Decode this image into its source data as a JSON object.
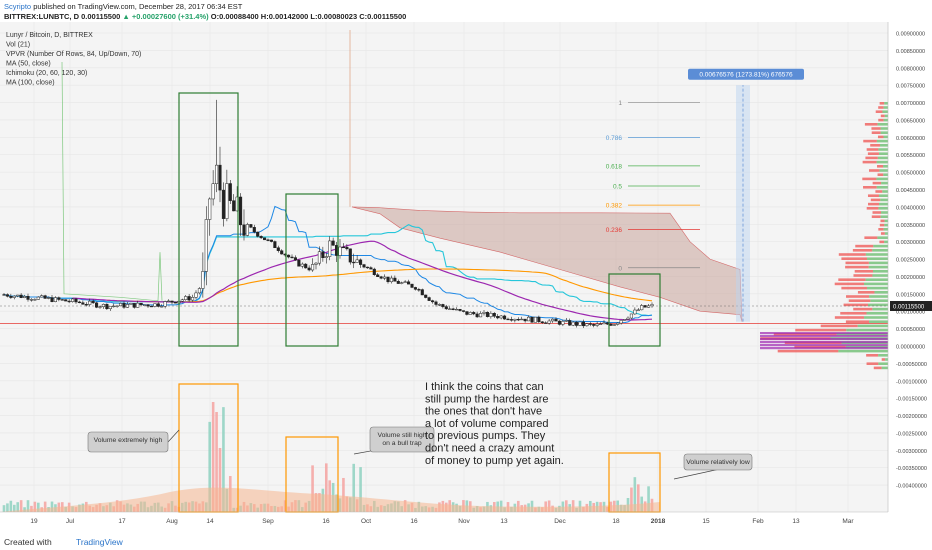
{
  "header": {
    "author": "Scyripto",
    "published": "published on TradingView.com, December 28, 2017 06:34 EST",
    "symbol": "BITTREX:LUNBTC, D",
    "last": "0.00115500",
    "change": "▲ +0.00027600 (+31.4%)",
    "ohlc": "O:0.00088400 H:0.00142000 L:0.00080023 C:0.00115500"
  },
  "legend": [
    "Lunyr / Bitcoin, D, BITTREX",
    "Vol (21)",
    "VPVR (Number Of Rows, 84, Up/Down, 70)",
    "MA (50, close)",
    "Ichimoku (20, 60, 120, 30)",
    "MA (100, close)"
  ],
  "footer": {
    "created": "Created with",
    "brand": "TradingView"
  },
  "annotations": {
    "main_text": [
      "I think the coins that can",
      "still pump the hardest are",
      "the ones that don't have",
      "a lot of volume compared",
      "to previous pumps. They",
      "don't need a crazy amount",
      "of money to pump yet again."
    ],
    "callout1": [
      "Volume extremely high"
    ],
    "callout2": [
      "Volume still high",
      "on a bull trap"
    ],
    "callout3": [
      "Volume relatively low"
    ],
    "measure_label": "0.00676576 (1273.81%) 676576"
  },
  "chart_data": {
    "type": "candlestick",
    "y_axis_ticks": [
      "0.00900000",
      "0.00850000",
      "0.00800000",
      "0.00750000",
      "0.00700000",
      "0.00650000",
      "0.00600000",
      "0.00550000",
      "0.00500000",
      "0.00450000",
      "0.00400000",
      "0.00350000",
      "0.00300000",
      "0.00250000",
      "0.00200000",
      "0.00150000",
      "0.00100000",
      "0.00050000",
      "0.00000000",
      "-0.00050000",
      "-0.00100000",
      "-0.00150000",
      "-0.00200000",
      "-0.00250000",
      "-0.00300000",
      "-0.00350000",
      "-0.00400000"
    ],
    "x_axis_ticks": [
      "19",
      "Jul",
      "17",
      "Aug",
      "14",
      "Sep",
      "16",
      "Oct",
      "16",
      "Nov",
      "13",
      "Dec",
      "18",
      "2018",
      "15",
      "Feb",
      "13",
      "Mar"
    ],
    "price_label": "0.00115500",
    "fib_levels": [
      {
        "label": "1",
        "value": 0.007
      },
      {
        "label": "0.786",
        "value": 0.006
      },
      {
        "label": "0.618",
        "value": 0.00518
      },
      {
        "label": "0.5",
        "value": 0.0046
      },
      {
        "label": "0.382",
        "value": 0.00405
      },
      {
        "label": "0.236",
        "value": 0.00335
      },
      {
        "label": "0",
        "value": 0.00225
      }
    ],
    "colors": {
      "up": "#26a69a",
      "down": "#ef5350",
      "ma50": "#9c27b0",
      "ma100": "#ff9800",
      "tenkan": "#1e88e5",
      "kijun": "#26c6da",
      "cloud": "#c8a49b",
      "box_green": "#2e7d32",
      "box_orange": "#ff9800",
      "support": "#e53935"
    }
  }
}
